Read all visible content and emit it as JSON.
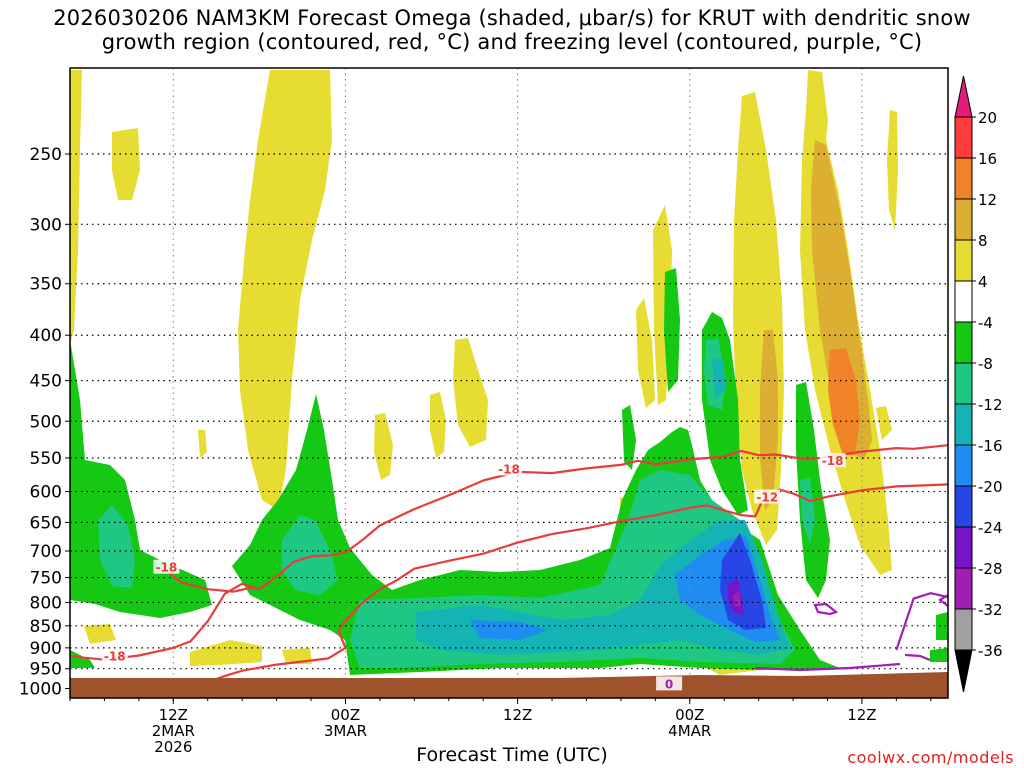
{
  "title": {
    "line1": "2026030206 NAM3KM Forecast Omega (shaded, μbar/s) for KRUT with dendritic snow",
    "line2": "growth region (contoured, red, °C) and freezing level (contoured, purple, °C)"
  },
  "credit": "coolwx.com/models",
  "chart_data": {
    "type": "heatmap",
    "title": "2026030206 NAM3KM Forecast Omega (shaded, μbar/s) for KRUT with dendritic snow growth region (contoured, red, °C) and freezing level (contoured, purple, °C)",
    "xlabel": "Forecast Time (UTC)",
    "ylabel": "",
    "x_hours_range": [
      6,
      57
    ],
    "y_pressure_range": [
      1025,
      200
    ],
    "y_scale": "log-pressure",
    "y_ticks": [
      1000,
      950,
      900,
      850,
      800,
      750,
      700,
      650,
      600,
      550,
      500,
      450,
      400,
      350,
      300,
      250
    ],
    "x_ticks": [
      {
        "hour": 12,
        "label": "12Z",
        "sub1": "2MAR",
        "sub2": "2026"
      },
      {
        "hour": 22,
        "label": "00Z",
        "sub1": "3MAR",
        "sub2": ""
      },
      {
        "hour": 32,
        "label": "12Z",
        "sub1": "",
        "sub2": ""
      },
      {
        "hour": 42,
        "label": "00Z",
        "sub1": "4MAR",
        "sub2": ""
      },
      {
        "hour": 52,
        "label": "12Z",
        "sub1": "",
        "sub2": ""
      }
    ],
    "grid": true,
    "colorbar": {
      "labels": [
        "20",
        "16",
        "12",
        "8",
        "4",
        "-4",
        "-8",
        "-12",
        "-16",
        "-20",
        "-24",
        "-28",
        "-32",
        "-36"
      ],
      "bins": [
        {
          "range": "16 to 20",
          "color": "#ff3b3b"
        },
        {
          "range": "12 to 16",
          "color": "#f08228"
        },
        {
          "range": "8 to 12",
          "color": "#dcae32"
        },
        {
          "range": "4 to 8",
          "color": "#e6dc32"
        },
        {
          "range": "-4 to 4",
          "color": "#ffffff"
        },
        {
          "range": "-8 to -4",
          "color": "#14c814"
        },
        {
          "range": "-12 to -8",
          "color": "#1ec882"
        },
        {
          "range": "-16 to -12",
          "color": "#14b4b4"
        },
        {
          "range": "-20 to -16",
          "color": "#1e8cf0"
        },
        {
          "range": "-24 to -20",
          "color": "#2846e6"
        },
        {
          "range": "-28 to -24",
          "color": "#7814c8"
        },
        {
          "range": "-32 to -28",
          "color": "#a01eb4"
        },
        {
          "range": "-36 to -32",
          "color": "#a0a0a0"
        }
      ],
      "top_arrow_color": "#e6197d",
      "bottom_arrow_color": "#000000"
    },
    "contour_labels": [
      {
        "value": "-18",
        "hour": 11.6,
        "p": 733,
        "color": "#e83c3c"
      },
      {
        "value": "-18",
        "hour": 8.6,
        "p": 923,
        "color": "#e83c3c"
      },
      {
        "value": "-18",
        "hour": 31.5,
        "p": 568,
        "color": "#e83c3c"
      },
      {
        "value": "-18",
        "hour": 50.3,
        "p": 556,
        "color": "#e83c3c"
      },
      {
        "value": "-12",
        "hour": 46.5,
        "p": 611,
        "color": "#e83c3c"
      },
      {
        "value": "0",
        "hour": 40.8,
        "p": 992,
        "color": "#a01eb4"
      }
    ],
    "contours": {
      "dgz_upper_minus18": [
        [
          6,
          920
        ],
        [
          8,
          928
        ],
        [
          10,
          918
        ],
        [
          12,
          900
        ],
        [
          13,
          885
        ],
        [
          14,
          840
        ],
        [
          15,
          782
        ],
        [
          16,
          762
        ],
        [
          17,
          773
        ],
        [
          18,
          748
        ],
        [
          19,
          720
        ],
        [
          20,
          710
        ],
        [
          21,
          708
        ],
        [
          22,
          703
        ],
        [
          23,
          680
        ],
        [
          24,
          655
        ],
        [
          26,
          628
        ],
        [
          28,
          606
        ],
        [
          30,
          583
        ],
        [
          32,
          570
        ],
        [
          34,
          572
        ],
        [
          36,
          565
        ],
        [
          38,
          560
        ],
        [
          39,
          554
        ],
        [
          40,
          559
        ],
        [
          42,
          552
        ],
        [
          44,
          548
        ],
        [
          45,
          540
        ],
        [
          46,
          546
        ],
        [
          47,
          545
        ],
        [
          48,
          549
        ],
        [
          49,
          552
        ],
        [
          50,
          548
        ],
        [
          52,
          541
        ],
        [
          54,
          536
        ],
        [
          55,
          537
        ],
        [
          57,
          532
        ]
      ],
      "dgz_lower_minus12_ish": [
        [
          13,
          1000
        ],
        [
          15,
          968
        ],
        [
          16,
          955
        ],
        [
          18,
          940
        ],
        [
          20,
          930
        ],
        [
          21,
          925
        ],
        [
          22,
          900
        ],
        [
          21.6,
          862
        ],
        [
          22,
          838
        ],
        [
          23,
          800
        ],
        [
          24,
          773
        ],
        [
          25,
          755
        ],
        [
          26,
          733
        ],
        [
          28,
          718
        ],
        [
          30,
          705
        ],
        [
          32,
          685
        ],
        [
          34,
          670
        ],
        [
          36,
          660
        ],
        [
          38,
          648
        ],
        [
          40,
          638
        ],
        [
          41,
          632
        ],
        [
          42,
          626
        ],
        [
          43,
          622
        ],
        [
          44,
          630
        ],
        [
          45,
          638
        ],
        [
          45.8,
          640
        ],
        [
          46.2,
          615
        ],
        [
          46.6,
          606
        ],
        [
          47.2,
          597
        ],
        [
          48,
          603
        ],
        [
          49,
          615
        ],
        [
          50,
          608
        ],
        [
          52,
          598
        ],
        [
          54,
          592
        ],
        [
          56,
          590
        ],
        [
          57,
          589
        ]
      ],
      "dgz_left_lobe": [
        [
          11.5,
          735
        ],
        [
          12.5,
          760
        ],
        [
          14,
          773
        ],
        [
          15.5,
          778
        ],
        [
          16.5,
          770
        ],
        [
          17,
          773
        ]
      ],
      "freezing_0": [
        [
          40,
          984
        ],
        [
          41,
          992
        ],
        [
          42,
          988
        ],
        [
          43,
          991
        ],
        [
          44,
          985
        ],
        [
          45,
          990
        ],
        [
          46,
          993
        ],
        [
          47,
          994
        ]
      ],
      "freezing_right": [
        [
          54,
          905
        ],
        [
          55,
          792
        ],
        [
          56,
          781
        ],
        [
          57,
          789
        ]
      ]
    },
    "omega_regions_note": "Shaded omega (μbar/s): negative values (ascent, greens/blues/purples) dominate 700-1000 hPa from ~00Z 3MAR through ~06Z 4MAR with a core <= -28 near 850 hPa around 02-03Z 4MAR; positive values (descent, yellows/oranges) in vertical plumes above 500 hPa, peaking 12-16 near 450-500 hPa around 12Z 4MAR."
  }
}
